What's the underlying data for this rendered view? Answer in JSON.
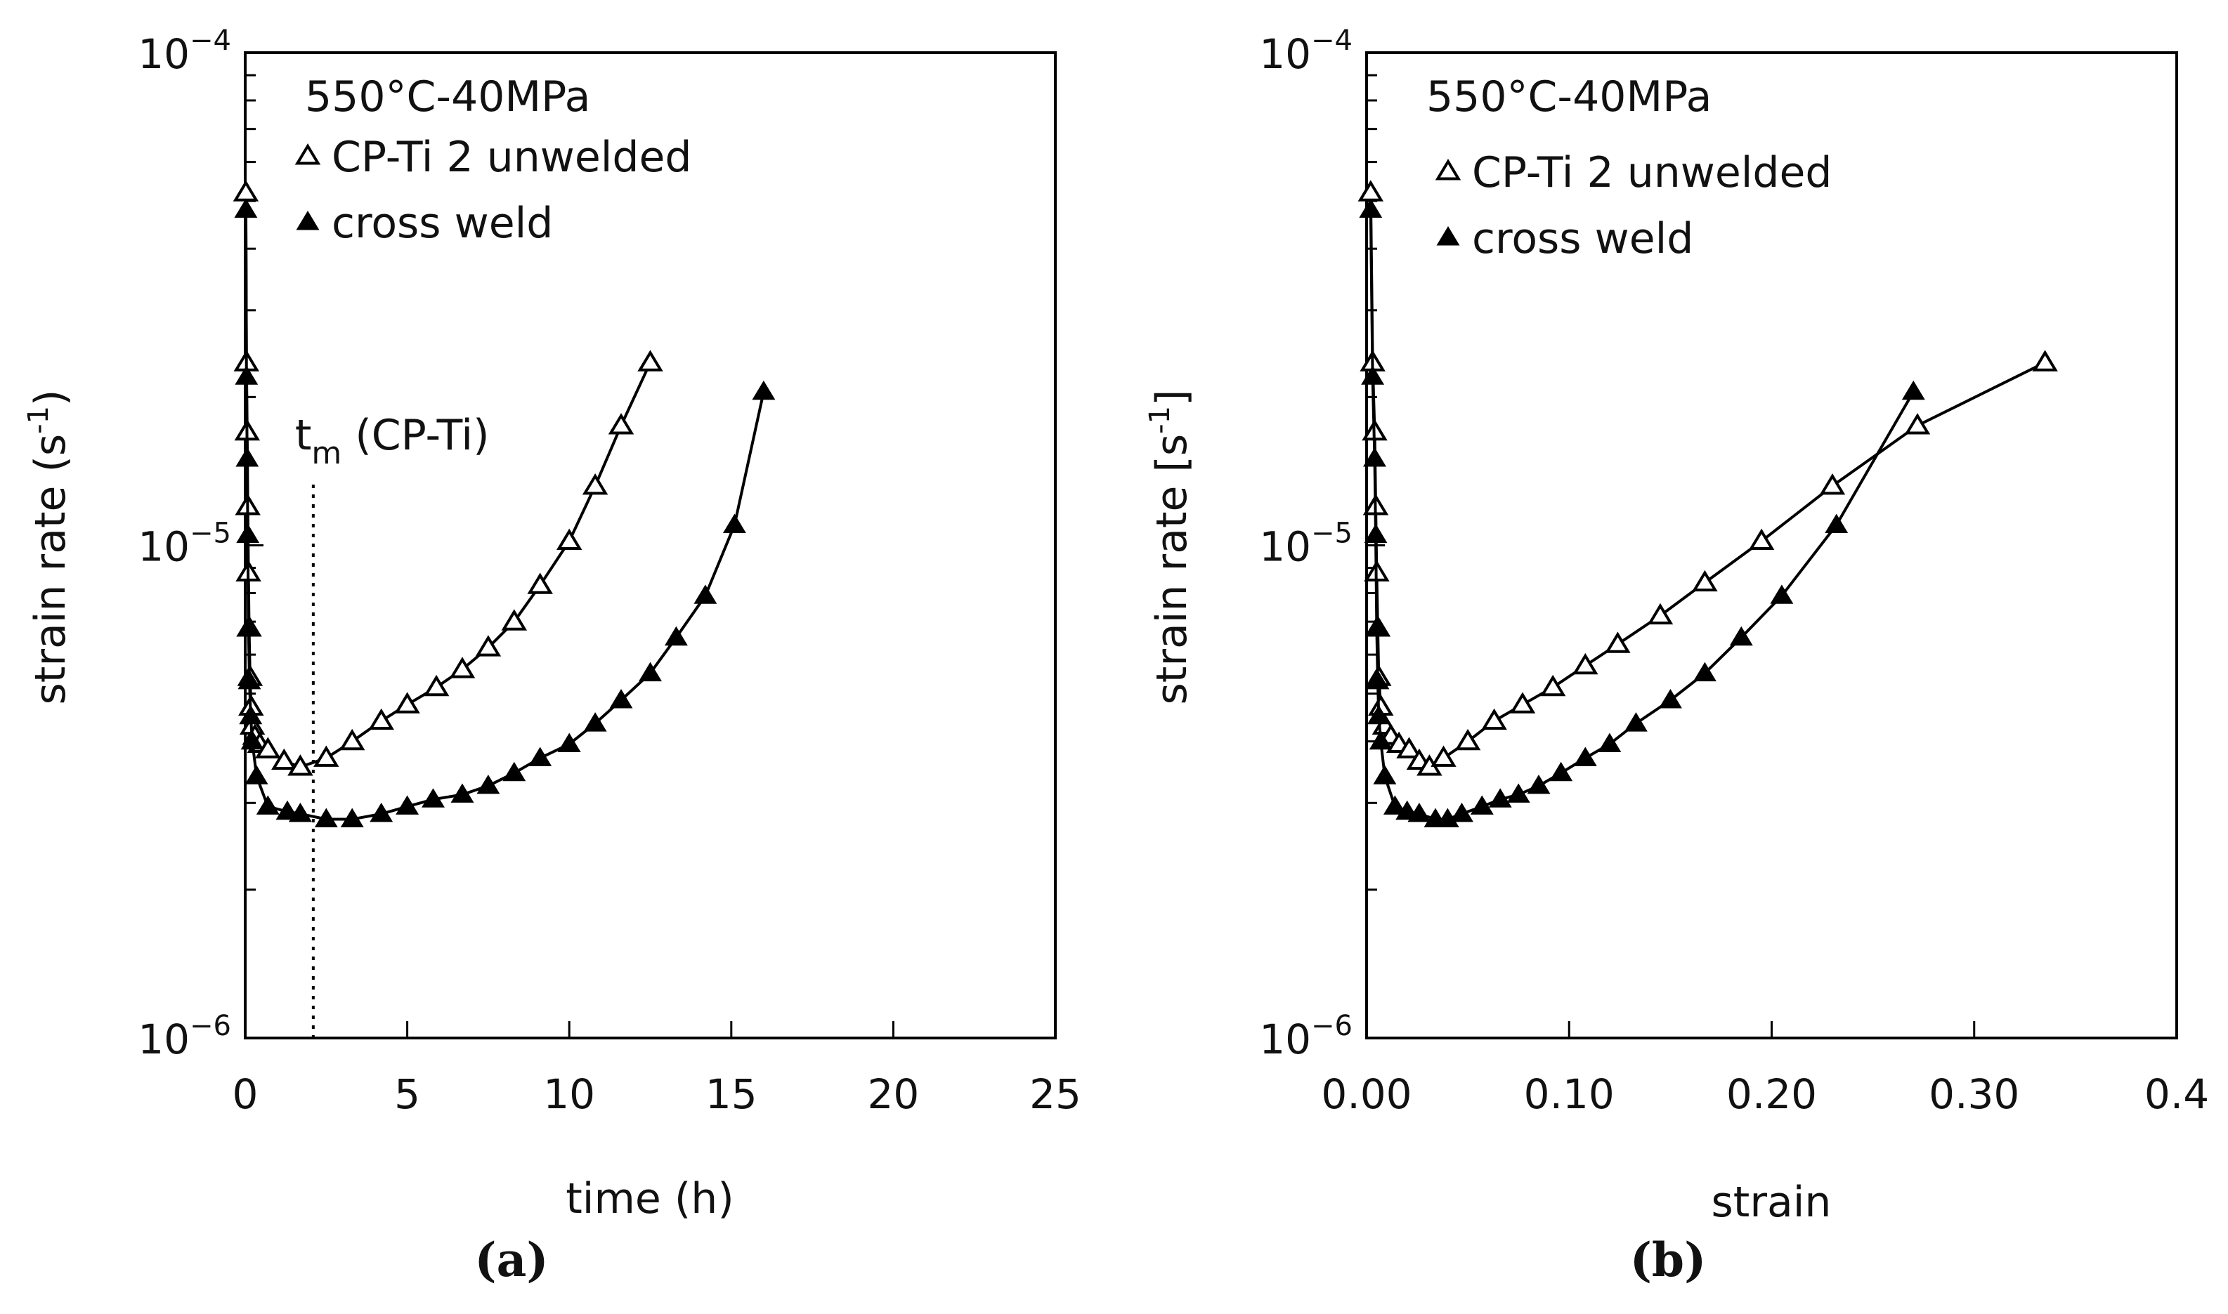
{
  "chart_data": [
    {
      "type": "line",
      "panel": "(a)",
      "caption": "(a)",
      "condition": "550°C-40MPa",
      "xlabel": "time (h)",
      "ylabel": "strain rate (s",
      "ylabel_unit": "-1",
      "ylabel_close": ")",
      "xlim": [
        0,
        25
      ],
      "ylim": [
        1e-06,
        0.0001
      ],
      "yscale": "log",
      "x_ticks": [
        0,
        5,
        10,
        15,
        20,
        25
      ],
      "x_tick_labels": [
        "0",
        "5",
        "10",
        "15",
        "20",
        "25"
      ],
      "y_tick_labels": [
        {
          "value": 1e-06,
          "base": "10",
          "exp": "−6"
        },
        {
          "value": 1e-05,
          "base": "10",
          "exp": "−5"
        },
        {
          "value": 0.0001,
          "base": "10",
          "exp": "−4"
        }
      ],
      "annotation": {
        "text": "t",
        "subscript": "m",
        "suffix": "  (CP-Ti)",
        "x": 2.1
      },
      "series": [
        {
          "name": "CP-Ti 2 unwelded",
          "marker": "open-triangle",
          "x": [
            0.02,
            0.04,
            0.06,
            0.08,
            0.1,
            0.12,
            0.15,
            0.18,
            0.22,
            0.3,
            0.45,
            0.7,
            1.2,
            1.7,
            2.5,
            3.3,
            4.2,
            5.0,
            5.9,
            6.7,
            7.5,
            8.3,
            9.1,
            10.0,
            10.8,
            11.6,
            12.5
          ],
          "y": [
            5.2e-05,
            2.35e-05,
            1.7e-05,
            1.2e-05,
            8.8e-06,
            6.8e-06,
            5.4e-06,
            4.7e-06,
            4.3e-06,
            4.1e-06,
            3.95e-06,
            3.85e-06,
            3.65e-06,
            3.55e-06,
            3.7e-06,
            4e-06,
            4.4e-06,
            4.75e-06,
            5.15e-06,
            5.6e-06,
            6.2e-06,
            7e-06,
            8.3e-06,
            1.02e-05,
            1.32e-05,
            1.75e-05,
            2.35e-05
          ]
        },
        {
          "name": "cross weld",
          "marker": "filled-triangle",
          "x": [
            0.02,
            0.04,
            0.06,
            0.08,
            0.1,
            0.13,
            0.17,
            0.22,
            0.35,
            0.7,
            1.3,
            1.7,
            2.5,
            3.3,
            4.2,
            5.0,
            5.8,
            6.7,
            7.5,
            8.3,
            9.1,
            10.0,
            10.8,
            11.6,
            12.5,
            13.3,
            14.2,
            15.1,
            16.0
          ],
          "y": [
            4.8e-05,
            2.2e-05,
            1.5e-05,
            1.05e-05,
            6.8e-06,
            5.3e-06,
            4.5e-06,
            4e-06,
            3.4e-06,
            2.95e-06,
            2.88e-06,
            2.85e-06,
            2.78e-06,
            2.78e-06,
            2.85e-06,
            2.95e-06,
            3.05e-06,
            3.12e-06,
            3.25e-06,
            3.45e-06,
            3.7e-06,
            3.95e-06,
            4.35e-06,
            4.85e-06,
            5.5e-06,
            6.5e-06,
            7.9e-06,
            1.1e-05,
            2.05e-05
          ]
        }
      ]
    },
    {
      "type": "line",
      "panel": "(b)",
      "caption": "(b)",
      "condition": "550°C-40MPa",
      "xlabel": "strain",
      "ylabel": "strain rate [s",
      "ylabel_unit": "-1",
      "ylabel_close": "]",
      "xlim": [
        0,
        0.4
      ],
      "ylim": [
        1e-06,
        0.0001
      ],
      "yscale": "log",
      "x_ticks": [
        0,
        0.1,
        0.2,
        0.3,
        0.4
      ],
      "x_tick_labels": [
        "0.00",
        "0.10",
        "0.20",
        "0.30",
        "0.4"
      ],
      "y_tick_labels": [
        {
          "value": 1e-06,
          "base": "10",
          "exp": "−6"
        },
        {
          "value": 1e-05,
          "base": "10",
          "exp": "−5"
        },
        {
          "value": 0.0001,
          "base": "10",
          "exp": "−4"
        }
      ],
      "series": [
        {
          "name": "CP-Ti 2 unwelded",
          "marker": "open-triangle",
          "x": [
            0.002,
            0.003,
            0.004,
            0.0045,
            0.005,
            0.0055,
            0.006,
            0.007,
            0.009,
            0.012,
            0.016,
            0.021,
            0.026,
            0.031,
            0.038,
            0.05,
            0.063,
            0.077,
            0.092,
            0.108,
            0.124,
            0.145,
            0.167,
            0.195,
            0.23,
            0.272,
            0.335
          ],
          "y": [
            5.2e-05,
            2.35e-05,
            1.7e-05,
            1.2e-05,
            8.8e-06,
            6.8e-06,
            5.4e-06,
            4.7e-06,
            4.3e-06,
            4.1e-06,
            3.95e-06,
            3.85e-06,
            3.65e-06,
            3.55e-06,
            3.7e-06,
            4e-06,
            4.4e-06,
            4.75e-06,
            5.15e-06,
            5.7e-06,
            6.3e-06,
            7.2e-06,
            8.4e-06,
            1.02e-05,
            1.32e-05,
            1.75e-05,
            2.35e-05
          ]
        },
        {
          "name": "cross weld",
          "marker": "filled-triangle",
          "x": [
            0.002,
            0.003,
            0.004,
            0.0045,
            0.005,
            0.0055,
            0.006,
            0.007,
            0.009,
            0.014,
            0.02,
            0.026,
            0.034,
            0.04,
            0.047,
            0.057,
            0.066,
            0.075,
            0.085,
            0.096,
            0.108,
            0.12,
            0.133,
            0.15,
            0.167,
            0.185,
            0.205,
            0.232,
            0.27
          ],
          "y": [
            4.8e-05,
            2.2e-05,
            1.5e-05,
            1.05e-05,
            6.8e-06,
            5.3e-06,
            4.5e-06,
            4e-06,
            3.4e-06,
            2.95e-06,
            2.88e-06,
            2.85e-06,
            2.78e-06,
            2.78e-06,
            2.85e-06,
            2.95e-06,
            3.05e-06,
            3.12e-06,
            3.25e-06,
            3.45e-06,
            3.7e-06,
            3.95e-06,
            4.35e-06,
            4.85e-06,
            5.5e-06,
            6.5e-06,
            7.9e-06,
            1.1e-05,
            2.05e-05
          ]
        }
      ]
    }
  ]
}
